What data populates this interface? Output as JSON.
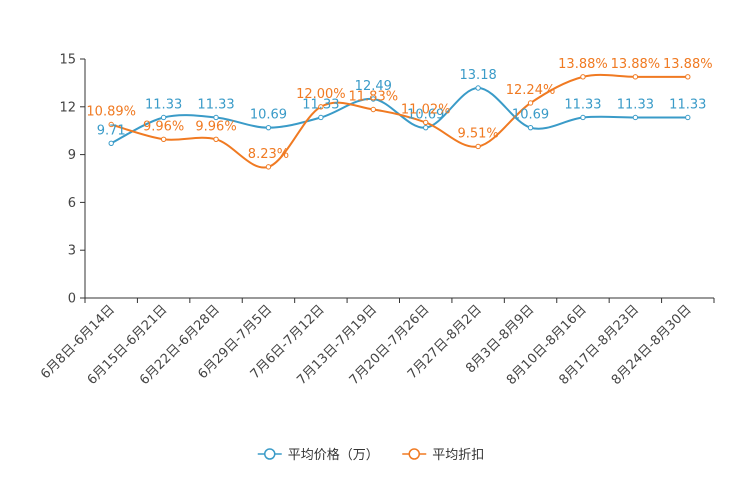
{
  "chart_data": {
    "type": "line",
    "title": "",
    "xlabel": "",
    "ylabel": "",
    "ylim": [
      0,
      15
    ],
    "yticks": [
      0,
      3,
      6,
      9,
      12,
      15
    ],
    "categories": [
      "6月8日-6月14日",
      "6月15日-6月21日",
      "6月22日-6月28日",
      "6月29日-7月5日",
      "7月6日-7月12日",
      "7月13日-7月19日",
      "7月20日-7月26日",
      "7月27日-8月2日",
      "8月3日-8月9日",
      "8月10日-8月16日",
      "8月17日-8月23日",
      "8月24日-8月30日"
    ],
    "series": [
      {
        "name": "平均价格（万）",
        "color": "#3a9bc8",
        "values": [
          9.71,
          11.33,
          11.33,
          10.69,
          11.33,
          12.49,
          10.69,
          13.18,
          10.69,
          11.33,
          11.33,
          11.33
        ],
        "labels": [
          "9.71",
          "11.33",
          "11.33",
          "10.69",
          "11.33",
          "12.49",
          "10.69",
          "13.18",
          "10.69",
          "11.33",
          "11.33",
          "11.33"
        ]
      },
      {
        "name": "平均折扣",
        "color": "#f07a22",
        "values": [
          10.89,
          9.96,
          9.96,
          8.23,
          12.0,
          11.83,
          11.02,
          9.51,
          12.24,
          13.88,
          13.88,
          13.88
        ],
        "labels": [
          "10.89%",
          "9.96%",
          "9.96%",
          "8.23%",
          "12.00%",
          "11.83%",
          "11.02%",
          "9.51%",
          "12.24%",
          "13.88%",
          "13.88%",
          "13.88%"
        ]
      }
    ],
    "legend_position": "bottom-center",
    "grid": false
  }
}
